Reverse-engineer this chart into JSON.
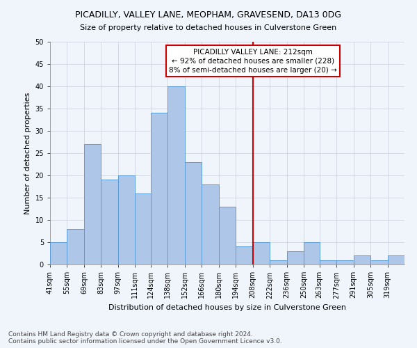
{
  "title": "PICADILLY, VALLEY LANE, MEOPHAM, GRAVESEND, DA13 0DG",
  "subtitle": "Size of property relative to detached houses in Culverstone Green",
  "xlabel": "Distribution of detached houses by size in Culverstone Green",
  "ylabel": "Number of detached properties",
  "footnote1": "Contains HM Land Registry data © Crown copyright and database right 2024.",
  "footnote2": "Contains public sector information licensed under the Open Government Licence v3.0.",
  "annotation_line1": "PICADILLY VALLEY LANE: 212sqm",
  "annotation_line2": "← 92% of detached houses are smaller (228)",
  "annotation_line3": "8% of semi-detached houses are larger (20) →",
  "vline_x": 208,
  "bar_labels": [
    "41sqm",
    "55sqm",
    "69sqm",
    "83sqm",
    "97sqm",
    "111sqm",
    "124sqm",
    "138sqm",
    "152sqm",
    "166sqm",
    "180sqm",
    "194sqm",
    "208sqm",
    "222sqm",
    "236sqm",
    "250sqm",
    "263sqm",
    "277sqm",
    "291sqm",
    "305sqm",
    "319sqm"
  ],
  "bar_left_edges": [
    41,
    55,
    69,
    83,
    97,
    111,
    124,
    138,
    152,
    166,
    180,
    194,
    208,
    222,
    236,
    250,
    263,
    277,
    291,
    305,
    319
  ],
  "bar_widths": [
    14,
    14,
    14,
    14,
    14,
    13,
    14,
    14,
    14,
    14,
    14,
    14,
    14,
    14,
    14,
    13,
    14,
    14,
    14,
    14,
    14
  ],
  "bar_heights": [
    5,
    8,
    27,
    19,
    20,
    16,
    34,
    40,
    23,
    18,
    13,
    4,
    5,
    1,
    3,
    5,
    1,
    1,
    2,
    1,
    2
  ],
  "bar_color": "#aec6e8",
  "bar_edge_color": "#5b9bd5",
  "vline_color": "#cc0000",
  "annotation_box_edge_color": "#cc0000",
  "background_color": "#f0f4fb",
  "grid_color": "#c8d0dc",
  "ylim": [
    0,
    50
  ],
  "yticks": [
    0,
    5,
    10,
    15,
    20,
    25,
    30,
    35,
    40,
    45,
    50
  ],
  "xlim_left": 41,
  "xlim_right": 333,
  "title_fontsize": 9,
  "subtitle_fontsize": 8,
  "xlabel_fontsize": 8,
  "ylabel_fontsize": 8,
  "tick_fontsize": 7,
  "annotation_fontsize": 7.5,
  "footnote_fontsize": 6.5
}
